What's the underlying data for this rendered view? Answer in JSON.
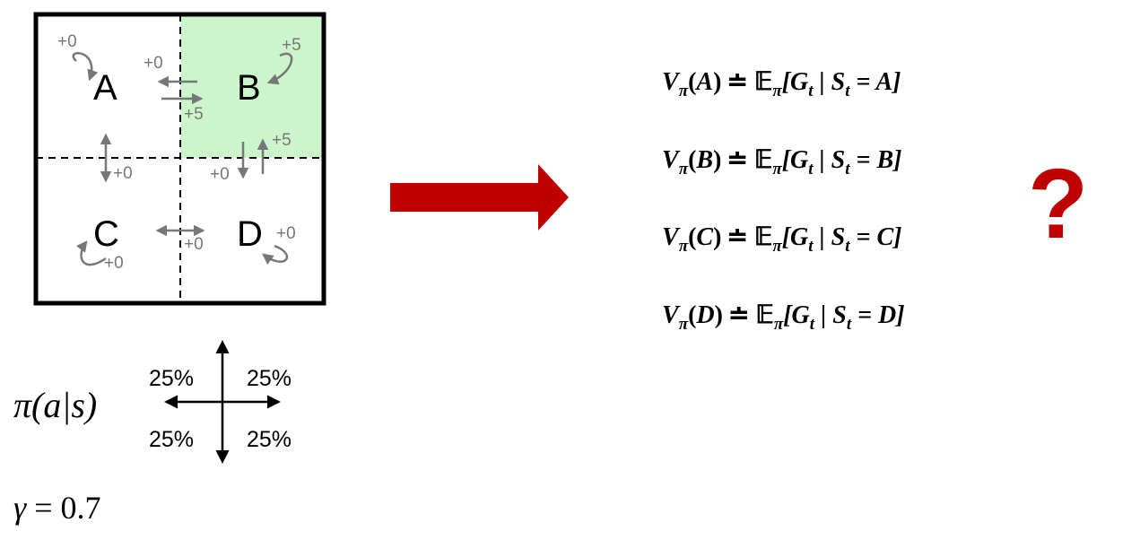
{
  "grid": {
    "states": [
      {
        "id": "A",
        "label": "A"
      },
      {
        "id": "B",
        "label": "B"
      },
      {
        "id": "C",
        "label": "C"
      },
      {
        "id": "D",
        "label": "D"
      }
    ],
    "highlight_color": "#ccf5cc",
    "rewards": {
      "a_self": "+0",
      "a_to_b_from_b": "+0",
      "a_to_b": "+5",
      "b_self": "+5",
      "b_up": "+5",
      "b_down": "+0",
      "a_c": "+0",
      "c_d": "+0",
      "c_self": "+0",
      "d_self": "+0"
    }
  },
  "policy": {
    "symbol": "π(a|s)",
    "probabilities": [
      "25%",
      "25%",
      "25%",
      "25%"
    ]
  },
  "gamma": {
    "symbol": "γ",
    "value": "0.7"
  },
  "value_functions": [
    {
      "state": "A",
      "lhs": "V",
      "sub": "π",
      "open": "(",
      "s": "A",
      "close": ")",
      "def": "≐",
      "E": "𝔼",
      "Esub": "π",
      "body": "[G",
      "tsub": "t",
      "mid": " | S",
      "tsub2": "t",
      "rhs": " = A]"
    },
    {
      "state": "B",
      "lhs": "V",
      "sub": "π",
      "open": "(",
      "s": "B",
      "close": ")",
      "def": "≐",
      "E": "𝔼",
      "Esub": "π",
      "body": "[G",
      "tsub": "t",
      "mid": " | S",
      "tsub2": "t",
      "rhs": " = B]"
    },
    {
      "state": "C",
      "lhs": "V",
      "sub": "π",
      "open": "(",
      "s": "C",
      "close": ")",
      "def": "≐",
      "E": "𝔼",
      "Esub": "π",
      "body": "[G",
      "tsub": "t",
      "mid": " | S",
      "tsub2": "t",
      "rhs": " = C]"
    },
    {
      "state": "D",
      "lhs": "V",
      "sub": "π",
      "open": "(",
      "s": "D",
      "close": ")",
      "def": "≐",
      "E": "𝔼",
      "Esub": "π",
      "body": "[G",
      "tsub": "t",
      "mid": " | S",
      "tsub2": "t",
      "rhs": " = D]"
    }
  ],
  "question_mark": "?",
  "colors": {
    "arrow_main": "#c00000",
    "grid_arrows": "#777777",
    "border": "#000000"
  }
}
